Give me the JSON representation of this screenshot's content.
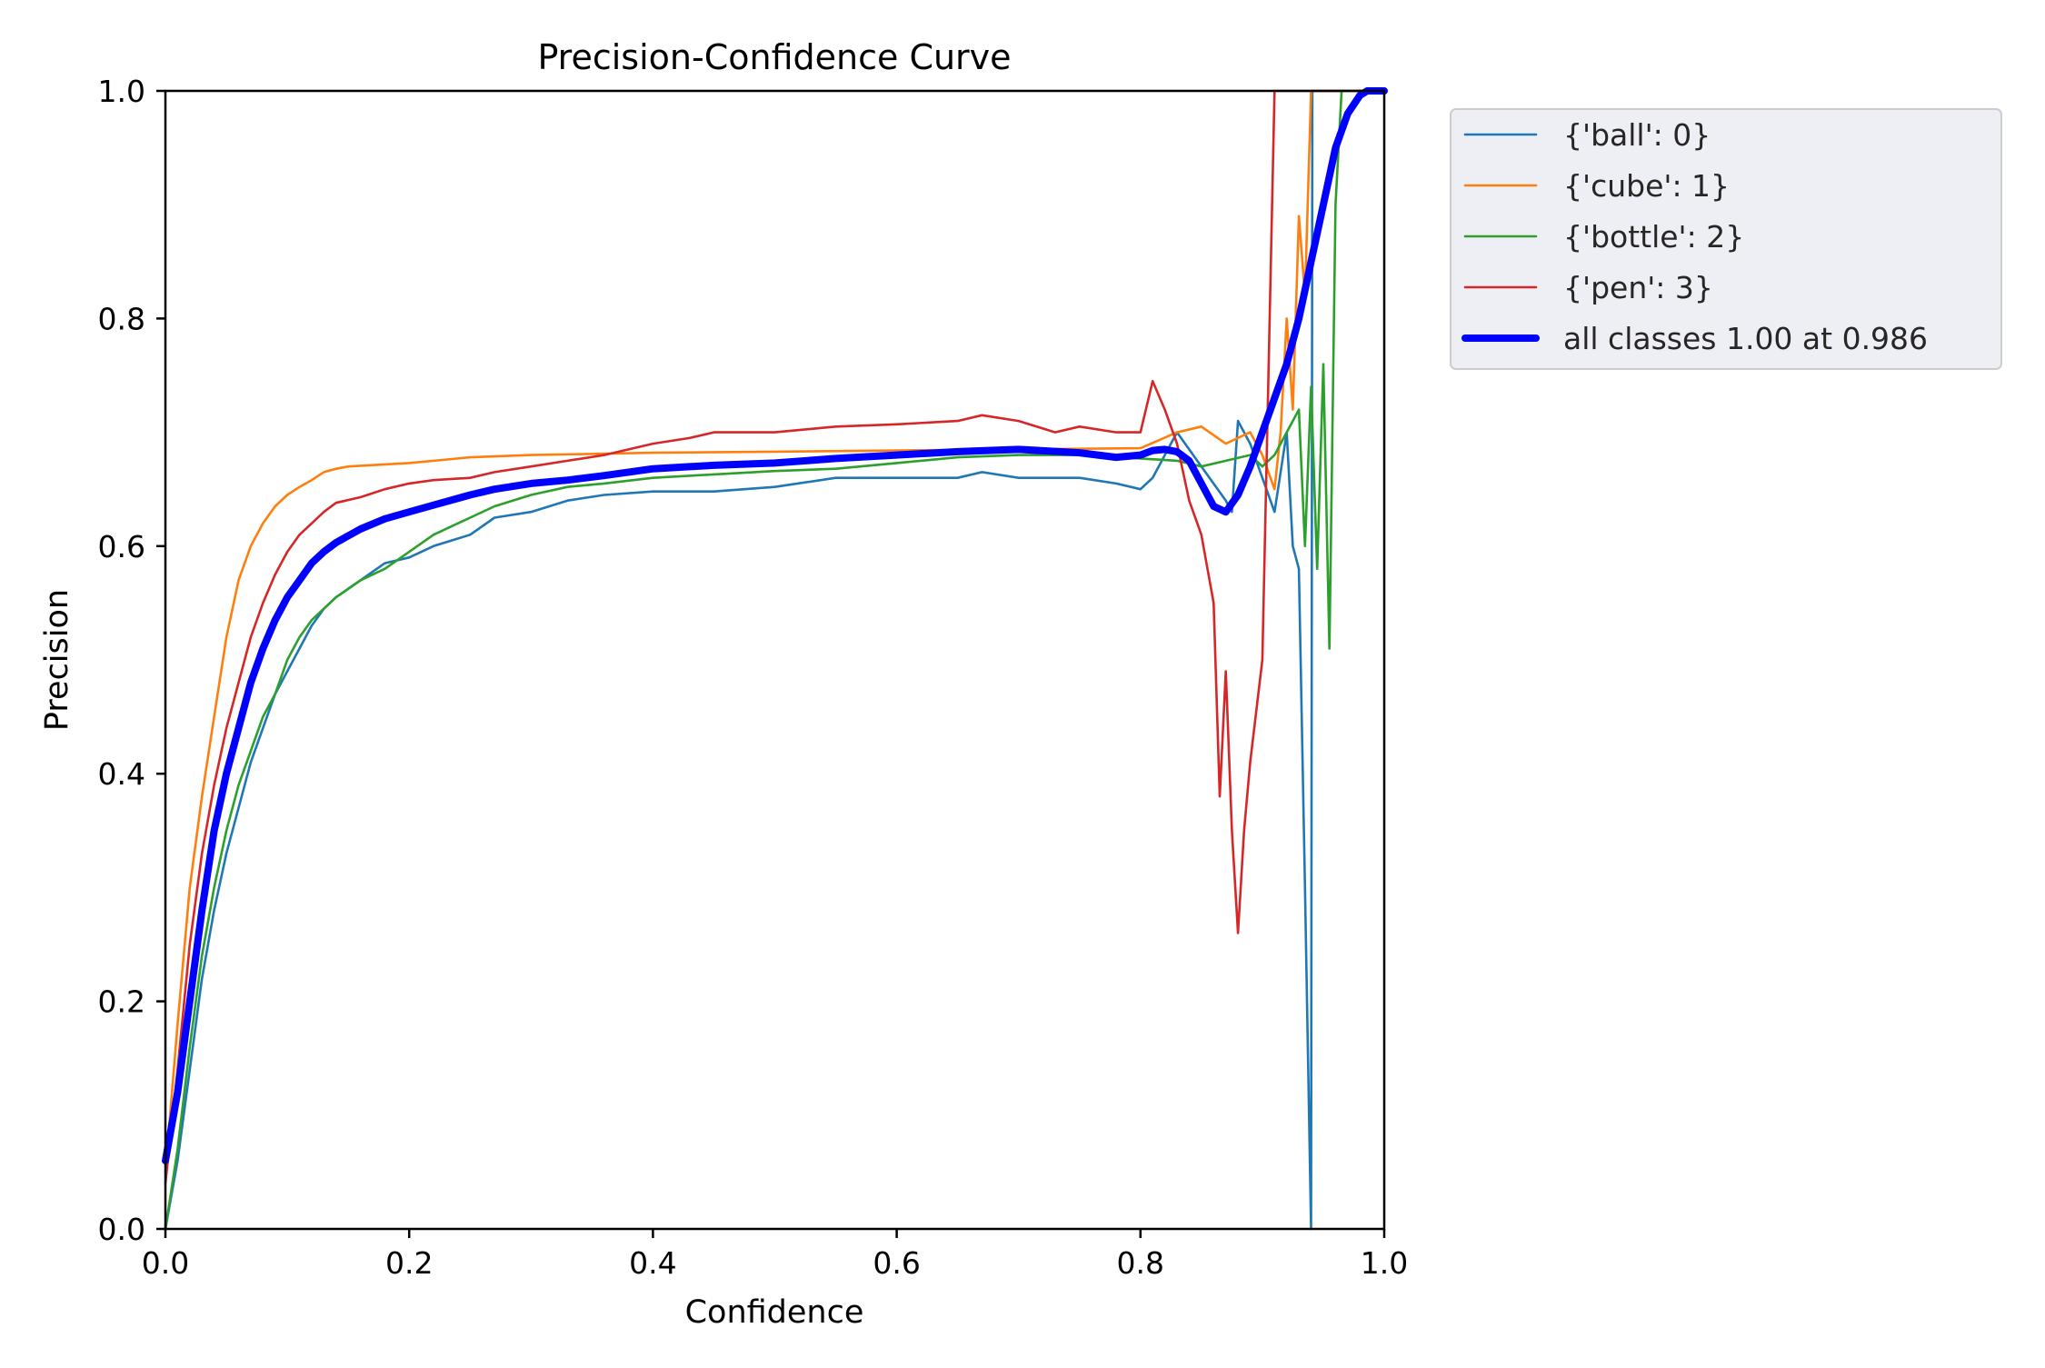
{
  "chart_data": {
    "type": "line",
    "title": "Precision-Confidence Curve",
    "xlabel": "Confidence",
    "ylabel": "Precision",
    "xlim": [
      0.0,
      1.0
    ],
    "ylim": [
      0.0,
      1.0
    ],
    "xticks": [
      "0.0",
      "0.2",
      "0.4",
      "0.6",
      "0.8",
      "1.0"
    ],
    "yticks": [
      "0.0",
      "0.2",
      "0.4",
      "0.6",
      "0.8",
      "1.0"
    ],
    "grid": false,
    "legend_position": "outside-top-right",
    "series": [
      {
        "name": "{'ball': 0}",
        "color": "#1f77b4",
        "x": [
          0.0,
          0.01,
          0.02,
          0.03,
          0.04,
          0.05,
          0.06,
          0.07,
          0.08,
          0.09,
          0.1,
          0.11,
          0.12,
          0.13,
          0.14,
          0.16,
          0.18,
          0.2,
          0.22,
          0.25,
          0.27,
          0.3,
          0.33,
          0.36,
          0.4,
          0.45,
          0.5,
          0.55,
          0.6,
          0.65,
          0.67,
          0.7,
          0.75,
          0.78,
          0.8,
          0.81,
          0.82,
          0.83,
          0.85,
          0.87,
          0.875,
          0.88,
          0.89,
          0.9,
          0.91,
          0.92,
          0.925,
          0.93,
          0.935,
          0.94,
          0.941,
          0.945,
          0.95,
          0.96,
          1.0
        ],
        "y": [
          0.0,
          0.06,
          0.14,
          0.22,
          0.28,
          0.33,
          0.37,
          0.41,
          0.44,
          0.47,
          0.49,
          0.51,
          0.53,
          0.545,
          0.555,
          0.57,
          0.585,
          0.59,
          0.6,
          0.61,
          0.625,
          0.63,
          0.64,
          0.645,
          0.648,
          0.648,
          0.652,
          0.66,
          0.66,
          0.66,
          0.665,
          0.66,
          0.66,
          0.655,
          0.65,
          0.66,
          0.68,
          0.7,
          0.67,
          0.64,
          0.63,
          0.71,
          0.69,
          0.66,
          0.63,
          0.7,
          0.6,
          0.58,
          0.3,
          0.0,
          1.0,
          1.0,
          1.0,
          1.0,
          1.0
        ]
      },
      {
        "name": "{'cube': 1}",
        "color": "#ff7f0e",
        "x": [
          0.0,
          0.01,
          0.02,
          0.03,
          0.04,
          0.05,
          0.06,
          0.07,
          0.08,
          0.09,
          0.1,
          0.11,
          0.12,
          0.13,
          0.14,
          0.15,
          0.2,
          0.25,
          0.3,
          0.4,
          0.5,
          0.6,
          0.7,
          0.8,
          0.83,
          0.85,
          0.87,
          0.89,
          0.9,
          0.91,
          0.915,
          0.92,
          0.925,
          0.93,
          0.935,
          0.94,
          1.0
        ],
        "y": [
          0.05,
          0.18,
          0.3,
          0.38,
          0.45,
          0.52,
          0.57,
          0.6,
          0.62,
          0.635,
          0.645,
          0.652,
          0.658,
          0.665,
          0.668,
          0.67,
          0.673,
          0.678,
          0.68,
          0.682,
          0.683,
          0.684,
          0.685,
          0.686,
          0.7,
          0.705,
          0.69,
          0.7,
          0.68,
          0.65,
          0.7,
          0.8,
          0.72,
          0.89,
          0.82,
          1.0,
          1.0
        ]
      },
      {
        "name": "{'bottle': 2}",
        "color": "#2ca02c",
        "x": [
          0.0,
          0.01,
          0.02,
          0.03,
          0.04,
          0.05,
          0.06,
          0.07,
          0.08,
          0.09,
          0.1,
          0.11,
          0.12,
          0.13,
          0.14,
          0.16,
          0.18,
          0.2,
          0.22,
          0.25,
          0.27,
          0.3,
          0.33,
          0.36,
          0.4,
          0.45,
          0.5,
          0.55,
          0.6,
          0.65,
          0.7,
          0.75,
          0.8,
          0.83,
          0.85,
          0.87,
          0.89,
          0.9,
          0.91,
          0.92,
          0.93,
          0.935,
          0.94,
          0.945,
          0.95,
          0.955,
          0.96,
          0.965,
          0.97,
          1.0
        ],
        "y": [
          0.0,
          0.07,
          0.16,
          0.24,
          0.3,
          0.35,
          0.39,
          0.42,
          0.45,
          0.47,
          0.5,
          0.52,
          0.535,
          0.545,
          0.555,
          0.57,
          0.58,
          0.595,
          0.61,
          0.625,
          0.635,
          0.645,
          0.652,
          0.655,
          0.66,
          0.663,
          0.666,
          0.668,
          0.673,
          0.678,
          0.68,
          0.68,
          0.677,
          0.675,
          0.67,
          0.675,
          0.68,
          0.67,
          0.68,
          0.7,
          0.72,
          0.6,
          0.74,
          0.58,
          0.76,
          0.51,
          0.9,
          1.0,
          1.0,
          1.0
        ]
      },
      {
        "name": "{'pen': 3}",
        "color": "#d62728",
        "x": [
          0.0,
          0.01,
          0.02,
          0.03,
          0.04,
          0.05,
          0.06,
          0.07,
          0.08,
          0.09,
          0.1,
          0.11,
          0.12,
          0.13,
          0.14,
          0.16,
          0.18,
          0.2,
          0.22,
          0.25,
          0.27,
          0.3,
          0.33,
          0.36,
          0.4,
          0.43,
          0.45,
          0.5,
          0.55,
          0.6,
          0.65,
          0.67,
          0.7,
          0.73,
          0.75,
          0.78,
          0.8,
          0.81,
          0.82,
          0.83,
          0.84,
          0.85,
          0.86,
          0.865,
          0.87,
          0.875,
          0.88,
          0.885,
          0.89,
          0.9,
          0.905,
          0.91,
          1.0
        ],
        "y": [
          0.04,
          0.14,
          0.25,
          0.33,
          0.39,
          0.44,
          0.48,
          0.52,
          0.55,
          0.575,
          0.595,
          0.61,
          0.62,
          0.63,
          0.638,
          0.643,
          0.65,
          0.655,
          0.658,
          0.66,
          0.665,
          0.67,
          0.675,
          0.68,
          0.69,
          0.695,
          0.7,
          0.7,
          0.705,
          0.707,
          0.71,
          0.715,
          0.71,
          0.7,
          0.705,
          0.7,
          0.7,
          0.745,
          0.72,
          0.69,
          0.64,
          0.61,
          0.55,
          0.38,
          0.49,
          0.35,
          0.26,
          0.35,
          0.41,
          0.5,
          0.75,
          1.0,
          1.0
        ]
      },
      {
        "name": "all classes 1.00 at 0.986",
        "color": "#0000ff",
        "x": [
          0.0,
          0.01,
          0.02,
          0.03,
          0.04,
          0.05,
          0.06,
          0.07,
          0.08,
          0.09,
          0.1,
          0.11,
          0.12,
          0.13,
          0.14,
          0.16,
          0.18,
          0.2,
          0.22,
          0.25,
          0.27,
          0.3,
          0.33,
          0.36,
          0.4,
          0.45,
          0.5,
          0.55,
          0.6,
          0.65,
          0.7,
          0.75,
          0.78,
          0.8,
          0.81,
          0.82,
          0.83,
          0.84,
          0.85,
          0.86,
          0.87,
          0.88,
          0.89,
          0.9,
          0.91,
          0.92,
          0.93,
          0.94,
          0.95,
          0.96,
          0.97,
          0.98,
          0.986,
          1.0
        ],
        "y": [
          0.06,
          0.12,
          0.2,
          0.28,
          0.35,
          0.4,
          0.44,
          0.48,
          0.51,
          0.535,
          0.555,
          0.57,
          0.585,
          0.595,
          0.603,
          0.615,
          0.624,
          0.63,
          0.636,
          0.645,
          0.65,
          0.655,
          0.658,
          0.662,
          0.668,
          0.671,
          0.673,
          0.677,
          0.68,
          0.683,
          0.685,
          0.682,
          0.678,
          0.68,
          0.684,
          0.685,
          0.683,
          0.675,
          0.655,
          0.635,
          0.63,
          0.645,
          0.67,
          0.7,
          0.73,
          0.76,
          0.8,
          0.85,
          0.9,
          0.95,
          0.98,
          0.996,
          1.0,
          1.0
        ]
      }
    ]
  }
}
